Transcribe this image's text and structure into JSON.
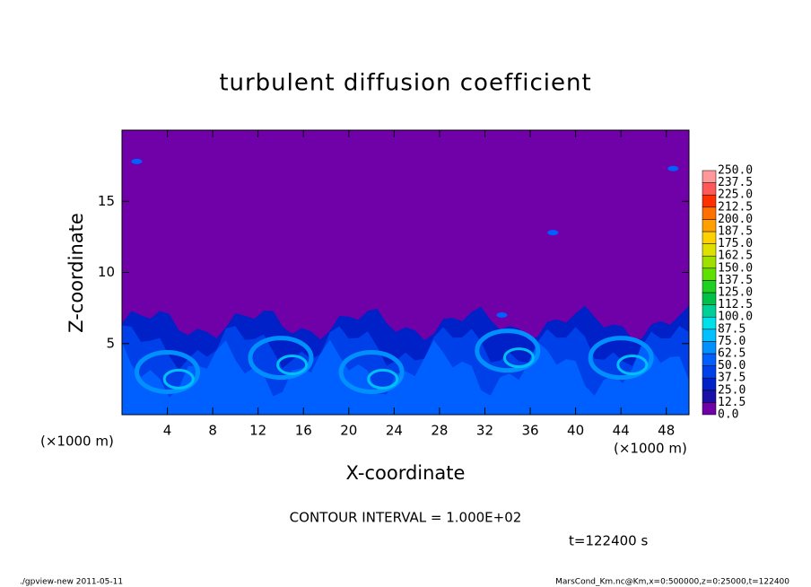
{
  "chart_data": {
    "type": "contour",
    "title": "turbulent diffusion coefficient",
    "x_label": "X-coordinate",
    "y_label": "Z-coordinate",
    "unit_label": "(×1000 m)",
    "xlim": [
      0,
      50
    ],
    "xticks": [
      4,
      8,
      12,
      16,
      20,
      24,
      28,
      32,
      36,
      40,
      44,
      48
    ],
    "ylim": [
      0,
      20
    ],
    "yticks": [
      5,
      10,
      15
    ],
    "colorbar": {
      "levels": [
        {
          "value": 0,
          "label": "0.0"
        },
        {
          "value": 12.5,
          "label": "12.5"
        },
        {
          "value": 25,
          "label": "25.0"
        },
        {
          "value": 37.5,
          "label": "37.5"
        },
        {
          "value": 50,
          "label": "50.0"
        },
        {
          "value": 62.5,
          "label": "62.5"
        },
        {
          "value": 75,
          "label": "75.0"
        },
        {
          "value": 87.5,
          "label": "87.5"
        },
        {
          "value": 100,
          "label": "100.0"
        },
        {
          "value": 112.5,
          "label": "112.5"
        },
        {
          "value": 125,
          "label": "125.0"
        },
        {
          "value": 137.5,
          "label": "137.5"
        },
        {
          "value": 150,
          "label": "150.0"
        },
        {
          "value": 162.5,
          "label": "162.5"
        },
        {
          "value": 175,
          "label": "175.0"
        },
        {
          "value": 187.5,
          "label": "187.5"
        },
        {
          "value": 200,
          "label": "200.0"
        },
        {
          "value": 212.5,
          "label": "212.5"
        },
        {
          "value": 225,
          "label": "225.0"
        },
        {
          "value": 237.5,
          "label": "237.5"
        },
        {
          "value": 250,
          "label": "250.0"
        }
      ],
      "colors": [
        "#7000a8",
        "#1a10a8",
        "#0020c8",
        "#0040e8",
        "#0060ff",
        "#0090ff",
        "#00c0ff",
        "#00e0e8",
        "#00d098",
        "#00c048",
        "#20d020",
        "#60e000",
        "#a0e000",
        "#e0e000",
        "#ffd000",
        "#ffa000",
        "#ff7000",
        "#ff3000",
        "#ff5858",
        "#ff9898"
      ]
    },
    "annotation": "CONTOUR INTERVAL = 1.000E+02",
    "time_label": "t=122400 s",
    "footer_left": "./gpview-new  2011-05-11",
    "footer_right": "MarsCond_Km.nc@Km,x=0:500000,z=0:25000,t=122400"
  }
}
